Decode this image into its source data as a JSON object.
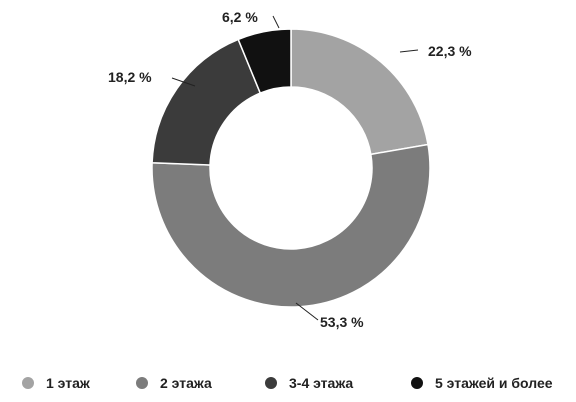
{
  "chart_data": {
    "type": "pie",
    "donut": true,
    "categories": [
      "1 этаж",
      "2 этажа",
      "3-4 этажа",
      "5 этажей и более"
    ],
    "values": [
      22.3,
      53.3,
      18.2,
      6.2
    ],
    "value_labels": [
      "22,3 %",
      "53,3 %",
      "18,2 %",
      "6,2 %"
    ],
    "colors": [
      "#a3a3a3",
      "#7c7c7c",
      "#3b3b3b",
      "#111111"
    ],
    "legend_position": "bottom"
  }
}
